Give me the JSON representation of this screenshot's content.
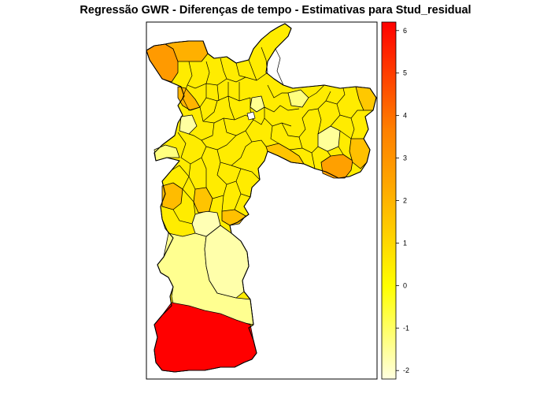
{
  "title": "Regressão GWR - Diferenças de tempo - Estimativas para Stud_residual",
  "legend": {
    "ticks": [
      "6",
      "5",
      "4",
      "3",
      "2",
      "1",
      "0",
      "-1",
      "-2"
    ],
    "min": -2.2,
    "max": 6.2,
    "colors": [
      "#ffffcc",
      "#ffff00",
      "#ffd700",
      "#ffa500",
      "#ff7f00",
      "#ff0000"
    ]
  },
  "map": {
    "background": "#ffffff",
    "region_values": {
      "far-south": 6.0,
      "south-west-large": -0.9,
      "south-center-large": -1.4,
      "south-east-strip": -0.2,
      "northwest-orange": 2.6,
      "northwest-north": 1.7,
      "east-orange": 2.3,
      "east-pale": -1.2,
      "center-pale": -1.3
    }
  }
}
